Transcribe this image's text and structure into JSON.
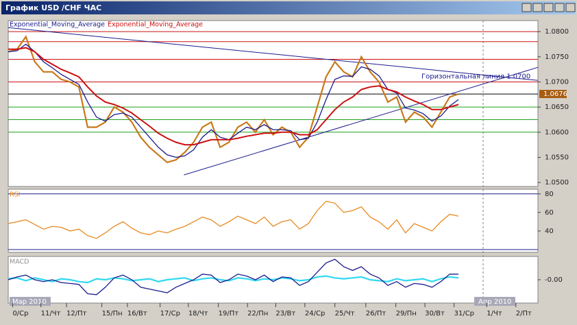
{
  "window": {
    "title": "График USD /CHF  ЧАС"
  },
  "chart_data": [
    {
      "type": "line",
      "series": [
        {
          "color": "#c8781a",
          "values": [
            1.076,
            1.0765,
            1.079,
            1.074,
            1.072,
            1.072,
            1.0705,
            1.07,
            1.069,
            1.061,
            1.061,
            1.062,
            1.065,
            1.064,
            1.062,
            1.059,
            1.057,
            1.0555,
            1.054,
            1.0545,
            1.056,
            1.058,
            1.061,
            1.062,
            1.057,
            1.058,
            1.061,
            1.062,
            1.06,
            1.0625,
            1.0595,
            1.061,
            1.06,
            1.057,
            1.059,
            1.065,
            1.071,
            1.074,
            1.072,
            1.071,
            1.075,
            1.072,
            1.07,
            1.066,
            1.067,
            1.062,
            1.064,
            1.063,
            1.061,
            1.064,
            1.067,
            1.0676
          ]
        },
        {
          "name": "Exponential_Moving_Average",
          "color": "#1a1a8c",
          "values": [
            1.076,
            1.0762,
            1.0775,
            1.076,
            1.074,
            1.0728,
            1.0715,
            1.0705,
            1.0695,
            1.066,
            1.063,
            1.0622,
            1.0635,
            1.0638,
            1.063,
            1.061,
            1.059,
            1.057,
            1.0555,
            1.055,
            1.0553,
            1.0565,
            1.059,
            1.0605,
            1.059,
            1.0585,
            1.0598,
            1.061,
            1.0605,
            1.0615,
            1.0605,
            1.0605,
            1.0603,
            1.0585,
            1.0588,
            1.062,
            1.0665,
            1.0705,
            1.0712,
            1.0711,
            1.073,
            1.0725,
            1.0712,
            1.0685,
            1.0678,
            1.0648,
            1.0644,
            1.0637,
            1.0622,
            1.0632,
            1.0652,
            1.0665
          ]
        },
        {
          "name": "Exponential_Moving_Average",
          "color": "#cc1010",
          "values": [
            1.0765,
            1.0765,
            1.0768,
            1.076,
            1.0745,
            1.0735,
            1.0725,
            1.0718,
            1.071,
            1.069,
            1.0672,
            1.066,
            1.0655,
            1.0648,
            1.0638,
            1.0625,
            1.0612,
            1.0598,
            1.0588,
            1.058,
            1.0575,
            1.0575,
            1.058,
            1.0585,
            1.0585,
            1.0585,
            1.0588,
            1.0592,
            1.0595,
            1.0598,
            1.0598,
            1.06,
            1.06,
            1.0595,
            1.0595,
            1.0605,
            1.0625,
            1.0645,
            1.066,
            1.067,
            1.0685,
            1.069,
            1.0692,
            1.0685,
            1.068,
            1.067,
            1.0662,
            1.0655,
            1.0645,
            1.0645,
            1.065,
            1.0655
          ]
        }
      ],
      "xlim": [
        0,
        60
      ],
      "xticks": [
        {
          "value": 0.5,
          "label": "0/Ср"
        },
        {
          "value": 3.7,
          "label": "11/Чт"
        },
        {
          "value": 6.6,
          "label": "12/Пт"
        },
        {
          "value": 10.6,
          "label": "15/Пн"
        },
        {
          "value": 13.5,
          "label": "16/Вт"
        },
        {
          "value": 17.2,
          "label": "17/Ср"
        },
        {
          "value": 20.4,
          "label": "18/Чт"
        },
        {
          "value": 23.8,
          "label": "19/Пт"
        },
        {
          "value": 27.1,
          "label": "22/Пн"
        },
        {
          "value": 30.3,
          "label": "23/Вт"
        },
        {
          "value": 33.6,
          "label": "24/Ср"
        },
        {
          "value": 37.0,
          "label": "25/Чт"
        },
        {
          "value": 40.5,
          "label": "26/Пт"
        },
        {
          "value": 43.9,
          "label": "29/Пн"
        },
        {
          "value": 47.2,
          "label": "30/Вт"
        },
        {
          "value": 50.5,
          "label": "31/Ср"
        },
        {
          "value": 54.2,
          "label": "1/Чт"
        },
        {
          "value": 57.5,
          "label": "2/Пт"
        }
      ],
      "ylim": [
        1.0492,
        1.0822
      ],
      "yticks": [
        {
          "value": 1.08,
          "label": "1.0800"
        },
        {
          "value": 1.075,
          "label": "1.0750"
        },
        {
          "value": 1.07,
          "label": "1.0700"
        },
        {
          "value": 1.065,
          "label": "1.0650"
        },
        {
          "value": 1.06,
          "label": "1.0600"
        },
        {
          "value": 1.055,
          "label": "1.0550"
        },
        {
          "value": 1.05,
          "label": "1.0500"
        }
      ],
      "levels": [
        {
          "value": 1.08,
          "color": "#cc1010"
        },
        {
          "value": 1.078,
          "color": "#cc1010"
        },
        {
          "value": 1.0745,
          "color": "#cc1010"
        },
        {
          "value": 1.07,
          "color": "#cc1010"
        },
        {
          "value": 1.0676,
          "color": "#000000"
        },
        {
          "value": 1.065,
          "color": "#1fa01f"
        },
        {
          "value": 1.0625,
          "color": "#1fa01f"
        },
        {
          "value": 1.06,
          "color": "#1fa01f"
        }
      ],
      "trendlines": [
        {
          "x": [
            0,
            60
          ],
          "values": [
            1.0808,
            1.0703
          ],
          "color": "#1a1a8c"
        },
        {
          "x": [
            19.9,
            60
          ],
          "values": [
            1.0515,
            1.0729
          ],
          "color": "#1a1a8c"
        }
      ],
      "annotation": "Горизонтальная линия 1.0700",
      "last_value": 1.0676,
      "period_labels": [
        "Мар 2010",
        "Апр 2010"
      ]
    },
    {
      "type": "line",
      "label": "RSI",
      "series": [
        {
          "color": "#e8891e",
          "values": [
            48,
            50,
            52,
            47,
            42,
            45,
            44,
            40,
            42,
            35,
            32,
            38,
            45,
            50,
            43,
            38,
            36,
            40,
            38,
            42,
            45,
            50,
            55,
            52,
            45,
            50,
            56,
            52,
            48,
            55,
            45,
            50,
            52,
            42,
            48,
            62,
            72,
            70,
            60,
            62,
            66,
            55,
            50,
            42,
            52,
            38,
            48,
            44,
            40,
            50,
            58,
            56
          ]
        }
      ],
      "ylim": [
        17,
        85
      ],
      "yticks": [
        80,
        60,
        40
      ],
      "levels": [
        {
          "value": 80,
          "color": "#1a1a8c"
        },
        {
          "value": 20,
          "color": "#1a1a8c"
        }
      ]
    },
    {
      "type": "line",
      "label": "MACD",
      "series": [
        {
          "color": "#30d8f0",
          "values": [
            0.0001,
            0.0002,
            -0.0001,
            0.0002,
            0.0,
            -0.0002,
            0.0001,
            0.0,
            -0.0002,
            -0.0003,
            0.0001,
            0.0,
            0.0002,
            0.0001,
            -0.0001,
            0.0,
            0.0001,
            -0.0002,
            0.0,
            0.0001,
            0.0002,
            -0.0001,
            0.0001,
            0.0002,
            0.0,
            -0.0001,
            0.0002,
            0.0001,
            -0.0001,
            0.0001,
            0.0,
            0.0002,
            0.0001,
            -0.0001,
            0.0,
            0.0003,
            0.0004,
            0.0002,
            0.0001,
            0.0002,
            0.0003,
            0.0,
            -0.0001,
            -0.0002,
            0.0001,
            -0.0001,
            0.0,
            0.0001,
            -0.0002,
            0.0001,
            0.0003,
            0.0002
          ]
        },
        {
          "color": "#1a1a8c",
          "values": [
            0.0,
            0.0003,
            0.0005,
            0.0,
            -0.0002,
            0.0,
            -0.0003,
            -0.0004,
            -0.0005,
            -0.0015,
            -0.0016,
            -0.0008,
            0.0002,
            0.0005,
            0.0,
            -0.0008,
            -0.001,
            -0.0012,
            -0.0014,
            -0.0008,
            -0.0004,
            0.0,
            0.0006,
            0.0005,
            -0.0003,
            0.0,
            0.0006,
            0.0004,
            0.0,
            0.0005,
            -0.0002,
            0.0003,
            0.0002,
            -0.0006,
            -0.0002,
            0.0008,
            0.0018,
            0.0022,
            0.0014,
            0.001,
            0.0014,
            0.0006,
            0.0002,
            -0.0006,
            -0.0002,
            -0.0008,
            -0.0004,
            -0.0005,
            -0.0008,
            -0.0002,
            0.0006,
            0.0006
          ]
        }
      ],
      "ylim": [
        -0.0025,
        0.0025
      ],
      "yticks": [
        {
          "value": 0,
          "label": "-0.00"
        }
      ]
    }
  ]
}
